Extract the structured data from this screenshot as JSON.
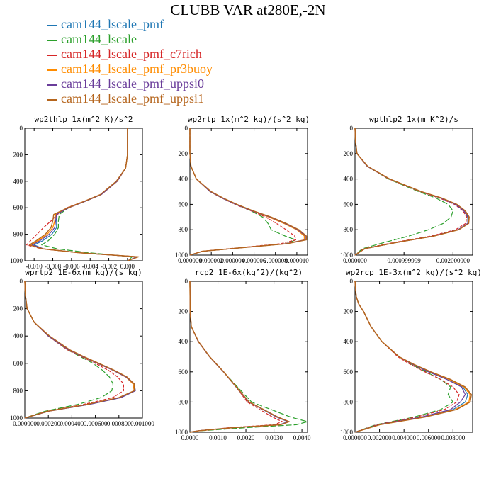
{
  "figure": {
    "title": "CLUBB VAR at280E,-2N"
  },
  "legend": [
    {
      "label": "cam144_lscale_pmf",
      "color": "#1f77b4"
    },
    {
      "label": "cam144_lscale",
      "color": "#2ca02c"
    },
    {
      "label": "cam144_lscale_pmf_c7rich",
      "color": "#d62728"
    },
    {
      "label": "cam144_lscale_pmf_pr3buoy",
      "color": "#ff8c00"
    },
    {
      "label": "cam144_lscale_pmf_uppsi0",
      "color": "#6a3d9a"
    },
    {
      "label": "cam144_lscale_pmf_uppsi1",
      "color": "#b5651d"
    }
  ],
  "chart_data": [
    {
      "type": "line",
      "title": "wp2thlp   1x(m^2 K)/s^2",
      "ylim": [
        1000,
        0
      ],
      "xlim": [
        -0.011,
        0.0016
      ],
      "x_ticks": [
        "-0.010",
        "-0.008",
        "-0.006",
        "-0.004",
        "-0.002",
        "0.000"
      ],
      "x_tick_values": [
        -0.01,
        -0.008,
        -0.006,
        -0.004,
        -0.002,
        0.0
      ],
      "y_ticks": [
        "0",
        "200",
        "400",
        "600",
        "800",
        "1000"
      ],
      "y_tick_values": [
        0,
        200,
        400,
        600,
        800,
        1000
      ],
      "y": [
        0,
        200,
        300,
        400,
        500,
        550,
        600,
        650,
        700,
        750,
        800,
        850,
        880,
        910,
        940,
        970,
        1000
      ],
      "series": [
        {
          "x": [
            0,
            0,
            -0.0002,
            -0.0011,
            -0.0028,
            -0.0045,
            -0.0063,
            -0.0077,
            -0.0076,
            -0.0076,
            -0.0081,
            -0.0091,
            -0.01,
            -0.009,
            -0.005,
            0.001,
            0.0
          ]
        },
        {
          "x": [
            0,
            0,
            -0.0002,
            -0.0011,
            -0.0028,
            -0.0045,
            -0.0063,
            -0.0073,
            -0.0074,
            -0.0074,
            -0.0078,
            -0.0085,
            -0.0092,
            -0.0075,
            -0.004,
            0.0005,
            0.0
          ]
        },
        {
          "x": [
            0,
            0,
            -0.0002,
            -0.0011,
            -0.0029,
            -0.0046,
            -0.0065,
            -0.0075,
            -0.0082,
            -0.009,
            -0.0097,
            -0.0104,
            -0.0108,
            -0.0092,
            -0.0052,
            0.001,
            0.0
          ]
        },
        {
          "x": [
            0,
            0,
            -0.0002,
            -0.0011,
            -0.0028,
            -0.0045,
            -0.0063,
            -0.0077,
            -0.0078,
            -0.008,
            -0.0086,
            -0.0096,
            -0.0103,
            -0.009,
            -0.005,
            0.0011,
            0.0
          ]
        },
        {
          "x": [
            0,
            0,
            -0.0002,
            -0.0011,
            -0.0028,
            -0.0045,
            -0.0063,
            -0.0076,
            -0.0077,
            -0.0078,
            -0.0084,
            -0.0094,
            -0.0102,
            -0.009,
            -0.005,
            0.001,
            0.0
          ]
        },
        {
          "x": [
            0,
            0,
            -0.0002,
            -0.0012,
            -0.0029,
            -0.0046,
            -0.0064,
            -0.0079,
            -0.008,
            -0.0082,
            -0.0088,
            -0.0098,
            -0.0105,
            -0.0091,
            -0.0051,
            0.0012,
            0.0
          ]
        }
      ]
    },
    {
      "type": "line",
      "title": "wp2rtp   1x(m^2 kg)/(s^2 kg)",
      "ylim": [
        1000,
        0
      ],
      "xlim": [
        0,
        1.1e-05
      ],
      "x_ticks": [
        "0.000000",
        "0.000002",
        "0.000004",
        "0.000006",
        "0.000008",
        "0.000010"
      ],
      "x_tick_values": [
        0,
        2e-06,
        4e-06,
        6e-06,
        8e-06,
        1e-05
      ],
      "y_ticks": [
        "0",
        "200",
        "400",
        "600",
        "800",
        "1000"
      ],
      "y_tick_values": [
        0,
        200,
        400,
        600,
        800,
        1000
      ],
      "y": [
        0,
        200,
        300,
        400,
        500,
        550,
        600,
        650,
        700,
        750,
        800,
        850,
        880,
        910,
        940,
        970,
        1000
      ],
      "series": [
        {
          "x": [
            0,
            0,
            1e-07,
            6e-07,
            1.9e-06,
            3e-06,
            4.3e-06,
            5.8e-06,
            7.5e-06,
            8.9e-06,
            1.01e-05,
            1.08e-05,
            1.08e-05,
            9e-06,
            5e-06,
            1.2e-06,
            0
          ]
        },
        {
          "x": [
            0,
            0,
            1e-07,
            6e-07,
            1.9e-06,
            3e-06,
            4.3e-06,
            5.7e-06,
            6.8e-06,
            7.3e-06,
            7.6e-06,
            8.9e-06,
            9.9e-06,
            9e-06,
            5e-06,
            1.2e-06,
            0
          ]
        },
        {
          "x": [
            0,
            0,
            1e-07,
            6e-07,
            1.9e-06,
            3e-06,
            4.2e-06,
            5.7e-06,
            7.1e-06,
            8.1e-06,
            9e-06,
            9.8e-06,
            9.9e-06,
            8.5e-06,
            4.8e-06,
            1.1e-06,
            0
          ]
        },
        {
          "x": [
            0,
            0,
            1e-07,
            6e-07,
            1.9e-06,
            3e-06,
            4.3e-06,
            5.8e-06,
            7.4e-06,
            8.8e-06,
            1e-05,
            1.07e-05,
            1.07e-05,
            9e-06,
            5e-06,
            1.2e-06,
            0
          ]
        },
        {
          "x": [
            0,
            0,
            1e-07,
            6e-07,
            1.9e-06,
            3e-06,
            4.3e-06,
            5.8e-06,
            7.5e-06,
            8.9e-06,
            1.01e-05,
            1.08e-05,
            1.08e-05,
            9e-06,
            5e-06,
            1.2e-06,
            0
          ]
        },
        {
          "x": [
            0,
            0,
            1e-07,
            6e-07,
            2e-06,
            3.1e-06,
            4.4e-06,
            5.9e-06,
            7.6e-06,
            9e-06,
            1.02e-05,
            1.09e-05,
            1.09e-05,
            9.1e-06,
            5.1e-06,
            1.2e-06,
            0
          ]
        }
      ]
    },
    {
      "type": "line",
      "title": "wpthlp2   1x(m K^2)/s",
      "ylim": [
        1000,
        0
      ],
      "xlim": [
        0,
        0.0024
      ],
      "x_ticks": [
        "0.000000",
        "0.000999999",
        "0.002000000"
      ],
      "x_tick_values": [
        0,
        0.001,
        0.002
      ],
      "y_ticks": [
        "0",
        "200",
        "400",
        "600",
        "800",
        "1000"
      ],
      "y_tick_values": [
        0,
        200,
        400,
        600,
        800,
        1000
      ],
      "y": [
        0,
        100,
        200,
        300,
        400,
        500,
        550,
        600,
        650,
        700,
        750,
        800,
        850,
        900,
        950,
        1000
      ],
      "series": [
        {
          "x": [
            0,
            1e-05,
            4e-05,
            0.00025,
            0.0007,
            0.00135,
            0.00175,
            0.00205,
            0.00222,
            0.0023,
            0.0023,
            0.0021,
            0.0016,
            0.00085,
            0.0002,
            0
          ]
        },
        {
          "x": [
            0,
            1e-05,
            4e-05,
            0.00025,
            0.00068,
            0.0013,
            0.00165,
            0.0019,
            0.002,
            0.00196,
            0.0018,
            0.0015,
            0.0011,
            0.0006,
            0.00015,
            0
          ]
        },
        {
          "x": [
            0,
            1e-05,
            4e-05,
            0.00025,
            0.00069,
            0.00133,
            0.00172,
            0.00203,
            0.0022,
            0.00228,
            0.00226,
            0.00205,
            0.00155,
            0.0008,
            0.00018,
            0
          ]
        },
        {
          "x": [
            0,
            1e-05,
            4e-05,
            0.00025,
            0.0007,
            0.00135,
            0.00176,
            0.00207,
            0.00224,
            0.00232,
            0.00231,
            0.00211,
            0.00161,
            0.00085,
            0.0002,
            0
          ]
        },
        {
          "x": [
            0,
            1e-05,
            4e-05,
            0.00025,
            0.0007,
            0.00135,
            0.00175,
            0.00205,
            0.00222,
            0.00231,
            0.0023,
            0.0021,
            0.0016,
            0.00085,
            0.0002,
            0
          ]
        },
        {
          "x": [
            0,
            1e-05,
            4e-05,
            0.00026,
            0.00071,
            0.00136,
            0.00177,
            0.00208,
            0.00225,
            0.00233,
            0.00232,
            0.00212,
            0.00162,
            0.00086,
            0.0002,
            0
          ]
        }
      ]
    },
    {
      "type": "line",
      "title": "wprtp2   1E-6x(m kg)/(s kg)",
      "ylim": [
        1000,
        0
      ],
      "xlim": [
        0,
        0.001
      ],
      "x_ticks": [
        "0.000000",
        "0.000200",
        "0.000400",
        "0.000600",
        "0.000800",
        "0.001000"
      ],
      "x_tick_values": [
        0,
        0.0002,
        0.0004,
        0.0006,
        0.0008,
        0.001
      ],
      "y_ticks": [
        "0",
        "200",
        "400",
        "600",
        "800",
        "1000"
      ],
      "y_tick_values": [
        0,
        200,
        400,
        600,
        800,
        1000
      ],
      "y": [
        0,
        100,
        200,
        300,
        400,
        500,
        550,
        600,
        650,
        700,
        750,
        800,
        850,
        900,
        950,
        1000
      ],
      "series": [
        {
          "x": [
            0,
            5e-06,
            2e-05,
            8e-05,
            0.0002,
            0.00037,
            0.00049,
            0.00062,
            0.00075,
            0.00086,
            0.00093,
            0.00094,
            0.00082,
            0.00055,
            0.0002,
            0
          ]
        },
        {
          "x": [
            0,
            5e-06,
            2e-05,
            8e-05,
            0.0002,
            0.00036,
            0.00047,
            0.00058,
            0.00066,
            0.00072,
            0.00075,
            0.00074,
            0.00065,
            0.00045,
            0.00017,
            0
          ]
        },
        {
          "x": [
            0,
            5e-06,
            2e-05,
            8e-05,
            0.0002,
            0.00036,
            0.00048,
            0.0006,
            0.00071,
            0.00079,
            0.00084,
            0.00084,
            0.00075,
            0.0005,
            0.00019,
            0
          ]
        },
        {
          "x": [
            0,
            5e-06,
            2e-05,
            8e-05,
            0.0002,
            0.00037,
            0.00049,
            0.00062,
            0.00075,
            0.00086,
            0.00092,
            0.00093,
            0.00081,
            0.00054,
            0.0002,
            0
          ]
        },
        {
          "x": [
            0,
            5e-06,
            2e-05,
            8e-05,
            0.0002,
            0.00037,
            0.00049,
            0.00062,
            0.00075,
            0.00086,
            0.00093,
            0.00094,
            0.00082,
            0.00055,
            0.0002,
            0
          ]
        },
        {
          "x": [
            0,
            5e-06,
            2e-05,
            8e-05,
            0.00021,
            0.00038,
            0.0005,
            0.00063,
            0.00076,
            0.00087,
            0.00093,
            0.00093,
            0.0008,
            0.00053,
            0.00019,
            0
          ]
        }
      ]
    },
    {
      "type": "line",
      "title": "rcp2   1E-6x(kg^2)/(kg^2)",
      "ylim": [
        1000,
        0
      ],
      "xlim": [
        0,
        0.0042
      ],
      "x_ticks": [
        "0.0000",
        "0.0010",
        "0.0020",
        "0.0030",
        "0.0040"
      ],
      "x_tick_values": [
        0,
        0.001,
        0.002,
        0.003,
        0.004
      ],
      "y_ticks": [
        "0",
        "200",
        "400",
        "600",
        "800",
        "1000"
      ],
      "y_tick_values": [
        0,
        200,
        400,
        600,
        800,
        1000
      ],
      "y": [
        0,
        200,
        300,
        400,
        500,
        600,
        700,
        800,
        850,
        900,
        930,
        950,
        970,
        990,
        1000
      ],
      "series": [
        {
          "x": [
            0,
            1e-05,
            5e-05,
            0.0003,
            0.0007,
            0.0012,
            0.00165,
            0.0021,
            0.0026,
            0.0031,
            0.0035,
            0.0032,
            0.0015,
            0.0003,
            0
          ]
        },
        {
          "x": [
            0,
            1e-05,
            5e-05,
            0.0003,
            0.0007,
            0.0012,
            0.0017,
            0.0022,
            0.0029,
            0.0036,
            0.0042,
            0.0038,
            0.002,
            0.0004,
            0
          ]
        },
        {
          "x": [
            0,
            1e-05,
            5e-05,
            0.0003,
            0.0007,
            0.0012,
            0.00165,
            0.00205,
            0.0025,
            0.00295,
            0.0033,
            0.003,
            0.0014,
            0.0003,
            0
          ]
        },
        {
          "x": [
            0,
            1e-05,
            5e-05,
            0.0003,
            0.0007,
            0.0012,
            0.00165,
            0.0021,
            0.00262,
            0.00312,
            0.00352,
            0.00322,
            0.00152,
            0.0003,
            0
          ]
        },
        {
          "x": [
            0,
            1e-05,
            5e-05,
            0.0003,
            0.0007,
            0.0012,
            0.00165,
            0.0021,
            0.00261,
            0.00311,
            0.00351,
            0.00321,
            0.00151,
            0.0003,
            0
          ]
        },
        {
          "x": [
            0,
            1e-05,
            5e-05,
            0.00031,
            0.00071,
            0.00121,
            0.00166,
            0.00212,
            0.00264,
            0.00315,
            0.00355,
            0.00325,
            0.00155,
            0.00031,
            0
          ]
        }
      ]
    },
    {
      "type": "line",
      "title": "wp2rcp   1E-3x(m^2 kg)/(s^2 kg)",
      "ylim": [
        1000,
        0
      ],
      "xlim": [
        0,
        0.0096
      ],
      "x_ticks": [
        "0.000000",
        "0.002000",
        "0.004000",
        "0.006000",
        "0.008000"
      ],
      "x_tick_values": [
        0,
        0.002,
        0.004,
        0.006,
        0.008
      ],
      "y_ticks": [
        "0",
        "200",
        "400",
        "600",
        "800",
        "1000"
      ],
      "y_tick_values": [
        0,
        200,
        400,
        600,
        800,
        1000
      ],
      "y": [
        0,
        100,
        150,
        200,
        300,
        400,
        500,
        550,
        600,
        650,
        700,
        750,
        800,
        850,
        900,
        950,
        1000
      ],
      "series": [
        {
          "x": [
            0,
            0.0001,
            0.0003,
            0.0007,
            0.0013,
            0.0022,
            0.0036,
            0.0047,
            0.006,
            0.0075,
            0.0088,
            0.0092,
            0.009,
            0.008,
            0.0055,
            0.002,
            0
          ]
        },
        {
          "x": [
            0,
            0.0001,
            0.0003,
            0.0007,
            0.0013,
            0.0022,
            0.0036,
            0.0046,
            0.0058,
            0.007,
            0.0078,
            0.0076,
            0.008,
            0.007,
            0.0048,
            0.0017,
            0
          ]
        },
        {
          "x": [
            0,
            0.0001,
            0.0003,
            0.0007,
            0.0013,
            0.0022,
            0.0035,
            0.0045,
            0.0057,
            0.007,
            0.008,
            0.0085,
            0.0083,
            0.0073,
            0.005,
            0.0018,
            0
          ]
        },
        {
          "x": [
            0,
            0.0001,
            0.0003,
            0.0007,
            0.0013,
            0.0022,
            0.0036,
            0.0047,
            0.0061,
            0.0077,
            0.0089,
            0.0094,
            0.0093,
            0.0082,
            0.0056,
            0.002,
            0
          ]
        },
        {
          "x": [
            0,
            0.0001,
            0.0003,
            0.0007,
            0.0013,
            0.0022,
            0.0036,
            0.0047,
            0.006,
            0.0075,
            0.0087,
            0.009,
            0.0086,
            0.0078,
            0.0054,
            0.0019,
            0
          ]
        },
        {
          "x": [
            0,
            0.0001,
            0.0003,
            0.0007,
            0.0013,
            0.0022,
            0.0036,
            0.0048,
            0.0062,
            0.0078,
            0.009,
            0.0095,
            0.0094,
            0.0083,
            0.0057,
            0.002,
            0
          ]
        }
      ]
    }
  ]
}
